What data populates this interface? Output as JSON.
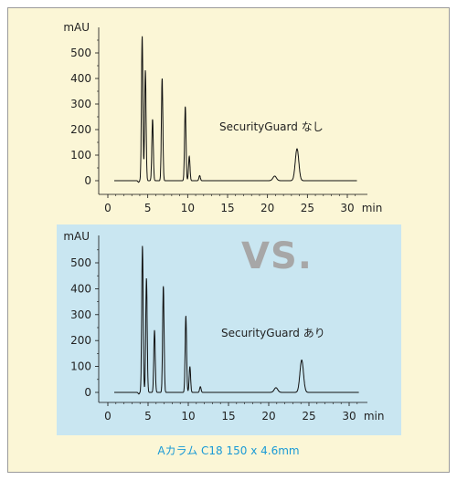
{
  "caption": "Aカラム C18 150 x 4.6mm",
  "vs_label": "VS.",
  "colors": {
    "top_background": "#fbf6d6",
    "bottom_background": "#c9e6f1",
    "trace": "#111111",
    "caption": "#1a9ad6",
    "vs": "#a7a7a7"
  },
  "chart_data": [
    {
      "type": "line",
      "annotation": "SecurityGuard なし",
      "y_unit_label": "mAU",
      "x_unit_label": "min",
      "xlim": [
        0,
        32
      ],
      "ylim": [
        -30,
        640
      ],
      "x_ticks": [
        0,
        5,
        10,
        15,
        20,
        25,
        30
      ],
      "y_ticks": [
        0,
        100,
        200,
        300,
        400,
        500
      ],
      "grid": false,
      "peaks": [
        {
          "rt": 4.3,
          "height": 565
        },
        {
          "rt": 4.7,
          "height": 432
        },
        {
          "rt": 5.6,
          "height": 240
        },
        {
          "rt": 6.8,
          "height": 400
        },
        {
          "rt": 9.7,
          "height": 290
        },
        {
          "rt": 10.2,
          "height": 95
        },
        {
          "rt": 11.5,
          "height": 20
        },
        {
          "rt": 20.9,
          "height": 18
        },
        {
          "rt": 23.7,
          "height": 125
        }
      ]
    },
    {
      "type": "line",
      "annotation": "SecurityGuard あり",
      "y_unit_label": "mAU",
      "x_unit_label": "min",
      "xlim": [
        0,
        32
      ],
      "ylim": [
        -30,
        640
      ],
      "x_ticks": [
        0,
        5,
        10,
        15,
        20,
        25,
        30
      ],
      "y_ticks": [
        0,
        100,
        200,
        300,
        400,
        500
      ],
      "grid": false,
      "peaks": [
        {
          "rt": 4.3,
          "height": 565
        },
        {
          "rt": 4.8,
          "height": 440
        },
        {
          "rt": 5.8,
          "height": 240
        },
        {
          "rt": 6.9,
          "height": 410
        },
        {
          "rt": 9.7,
          "height": 295
        },
        {
          "rt": 10.2,
          "height": 100
        },
        {
          "rt": 11.5,
          "height": 22
        },
        {
          "rt": 20.9,
          "height": 18
        },
        {
          "rt": 24.1,
          "height": 125
        }
      ]
    }
  ]
}
